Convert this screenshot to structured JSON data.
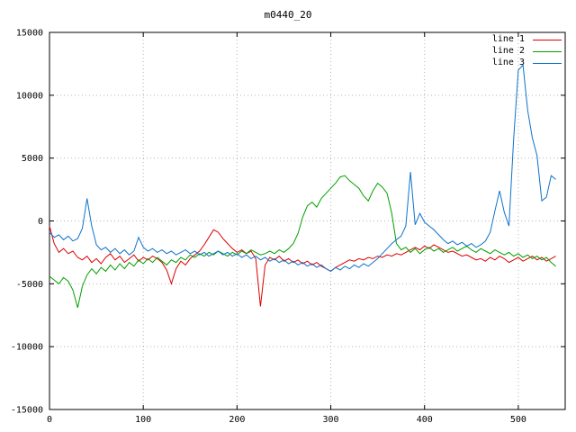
{
  "chart_data": {
    "type": "line",
    "title": "m0440_20",
    "xlabel": "",
    "ylabel": "",
    "xlim": [
      0,
      550
    ],
    "ylim": [
      -15000,
      15000
    ],
    "xticks": [
      0,
      100,
      200,
      300,
      400,
      500
    ],
    "yticks": [
      -15000,
      -10000,
      -5000,
      0,
      5000,
      10000,
      15000
    ],
    "grid": true,
    "grid_style": "dotted",
    "legend_position": "top-right-inside",
    "colors": {
      "grid": "#b4b4b4",
      "border": "#000000",
      "background": "#ffffff",
      "text": "#000000"
    },
    "x": [
      0,
      5,
      10,
      15,
      20,
      25,
      30,
      35,
      40,
      45,
      50,
      55,
      60,
      65,
      70,
      75,
      80,
      85,
      90,
      95,
      100,
      105,
      110,
      115,
      120,
      125,
      130,
      135,
      140,
      145,
      150,
      155,
      160,
      165,
      170,
      175,
      180,
      185,
      190,
      195,
      200,
      205,
      210,
      215,
      220,
      225,
      230,
      235,
      240,
      245,
      250,
      255,
      260,
      265,
      270,
      275,
      280,
      285,
      290,
      295,
      300,
      305,
      310,
      315,
      320,
      325,
      330,
      335,
      340,
      345,
      350,
      355,
      360,
      365,
      370,
      375,
      380,
      385,
      390,
      395,
      400,
      405,
      410,
      415,
      420,
      425,
      430,
      435,
      440,
      445,
      450,
      455,
      460,
      465,
      470,
      475,
      480,
      485,
      490,
      495,
      500,
      505,
      510,
      515,
      520,
      525,
      530,
      535,
      540
    ],
    "series": [
      {
        "name": "line 1",
        "color": "#dd0000",
        "values": [
          -400,
          -1800,
          -2500,
          -2200,
          -2600,
          -2400,
          -2900,
          -3100,
          -2800,
          -3300,
          -3000,
          -3400,
          -2900,
          -2600,
          -3100,
          -2800,
          -3300,
          -3000,
          -2700,
          -3200,
          -2900,
          -3100,
          -2800,
          -3000,
          -3300,
          -3900,
          -5000,
          -3800,
          -3200,
          -3500,
          -3000,
          -2700,
          -2400,
          -1900,
          -1300,
          -700,
          -900,
          -1400,
          -1800,
          -2200,
          -2500,
          -2300,
          -2600,
          -2400,
          -3000,
          -6800,
          -3500,
          -2900,
          -3100,
          -2800,
          -3200,
          -3000,
          -3300,
          -3100,
          -3400,
          -3200,
          -3500,
          -3300,
          -3600,
          -3800,
          -4000,
          -3700,
          -3500,
          -3300,
          -3100,
          -3200,
          -3000,
          -3100,
          -2900,
          -3000,
          -2800,
          -2900,
          -2700,
          -2800,
          -2600,
          -2700,
          -2500,
          -2300,
          -2100,
          -2300,
          -2000,
          -2200,
          -1900,
          -2100,
          -2300,
          -2500,
          -2400,
          -2600,
          -2800,
          -2700,
          -2900,
          -3100,
          -3000,
          -3200,
          -2900,
          -3100,
          -2800,
          -3000,
          -3300,
          -3100,
          -2900,
          -3200,
          -3000,
          -2800,
          -3100,
          -2900,
          -3200,
          -3000,
          -2800
        ]
      },
      {
        "name": "line 2",
        "color": "#00a000",
        "values": [
          -4400,
          -4700,
          -5000,
          -4500,
          -4800,
          -5500,
          -6900,
          -5200,
          -4300,
          -3800,
          -4200,
          -3700,
          -4000,
          -3500,
          -3900,
          -3400,
          -3800,
          -3300,
          -3600,
          -3100,
          -3400,
          -3000,
          -3300,
          -2900,
          -3200,
          -3500,
          -3100,
          -3300,
          -2900,
          -3100,
          -2700,
          -2900,
          -2600,
          -2800,
          -2500,
          -2700,
          -2400,
          -2600,
          -2800,
          -2500,
          -2700,
          -2400,
          -2600,
          -2300,
          -2500,
          -2700,
          -2600,
          -2400,
          -2600,
          -2300,
          -2500,
          -2200,
          -1800,
          -1000,
          300,
          1200,
          1500,
          1100,
          1800,
          2200,
          2600,
          3000,
          3500,
          3600,
          3200,
          2900,
          2600,
          2000,
          1600,
          2400,
          3000,
          2700,
          2200,
          600,
          -1800,
          -2300,
          -2100,
          -2500,
          -2200,
          -2600,
          -2300,
          -2100,
          -2400,
          -2200,
          -2500,
          -2300,
          -2100,
          -2400,
          -2200,
          -2000,
          -2300,
          -2500,
          -2200,
          -2400,
          -2600,
          -2300,
          -2500,
          -2700,
          -2500,
          -2800,
          -2600,
          -2900,
          -2700,
          -3000,
          -2800,
          -3100,
          -2900,
          -3300,
          -3600
        ]
      },
      {
        "name": "line 3",
        "color": "#0e72cc",
        "values": [
          -900,
          -1300,
          -1100,
          -1500,
          -1200,
          -1600,
          -1400,
          -600,
          1800,
          -400,
          -1900,
          -2300,
          -2100,
          -2500,
          -2200,
          -2600,
          -2300,
          -2700,
          -2400,
          -1300,
          -2100,
          -2400,
          -2200,
          -2500,
          -2300,
          -2600,
          -2400,
          -2700,
          -2500,
          -2300,
          -2600,
          -2400,
          -2700,
          -2500,
          -2800,
          -2600,
          -2400,
          -2700,
          -2500,
          -2800,
          -2600,
          -2900,
          -2700,
          -3000,
          -2800,
          -3100,
          -2900,
          -3200,
          -3000,
          -3300,
          -3100,
          -3400,
          -3200,
          -3500,
          -3300,
          -3600,
          -3400,
          -3700,
          -3500,
          -3800,
          -4000,
          -3700,
          -3900,
          -3600,
          -3800,
          -3500,
          -3700,
          -3400,
          -3600,
          -3300,
          -3000,
          -2600,
          -2200,
          -1800,
          -1500,
          -1200,
          -400,
          3900,
          -300,
          600,
          -100,
          -400,
          -700,
          -1100,
          -1500,
          -1800,
          -1600,
          -1900,
          -1700,
          -2000,
          -1800,
          -2100,
          -1900,
          -1600,
          -900,
          800,
          2400,
          700,
          -400,
          6500,
          12000,
          12400,
          8800,
          6600,
          5200,
          1600,
          1900,
          3600,
          3300
        ]
      }
    ]
  }
}
